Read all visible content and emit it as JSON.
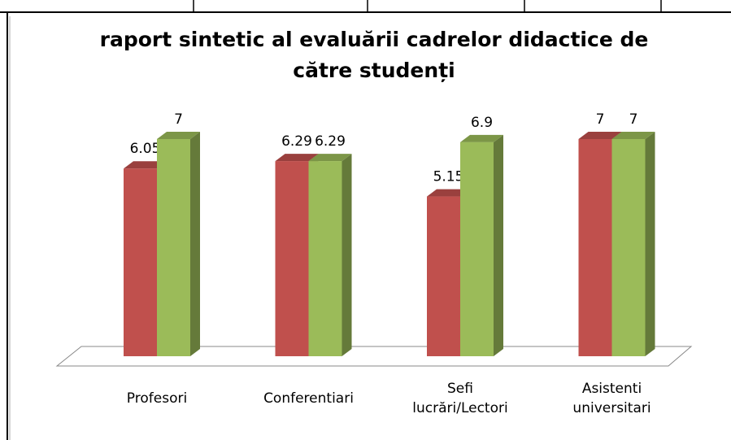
{
  "chart_data": {
    "type": "bar3d",
    "title": "raport sintetic al evaluării cadrelor didactice de către studenți",
    "categories": [
      "Profesori",
      "Conferentiari",
      "Sefi lucrări/Lectori",
      "Asistenti universitari"
    ],
    "series": [
      {
        "color": "#c0504d",
        "values": [
          6.05,
          6.29,
          5.15,
          7
        ]
      },
      {
        "color": "#9bbb59",
        "values": [
          7,
          6.29,
          6.9,
          7
        ]
      }
    ]
  }
}
